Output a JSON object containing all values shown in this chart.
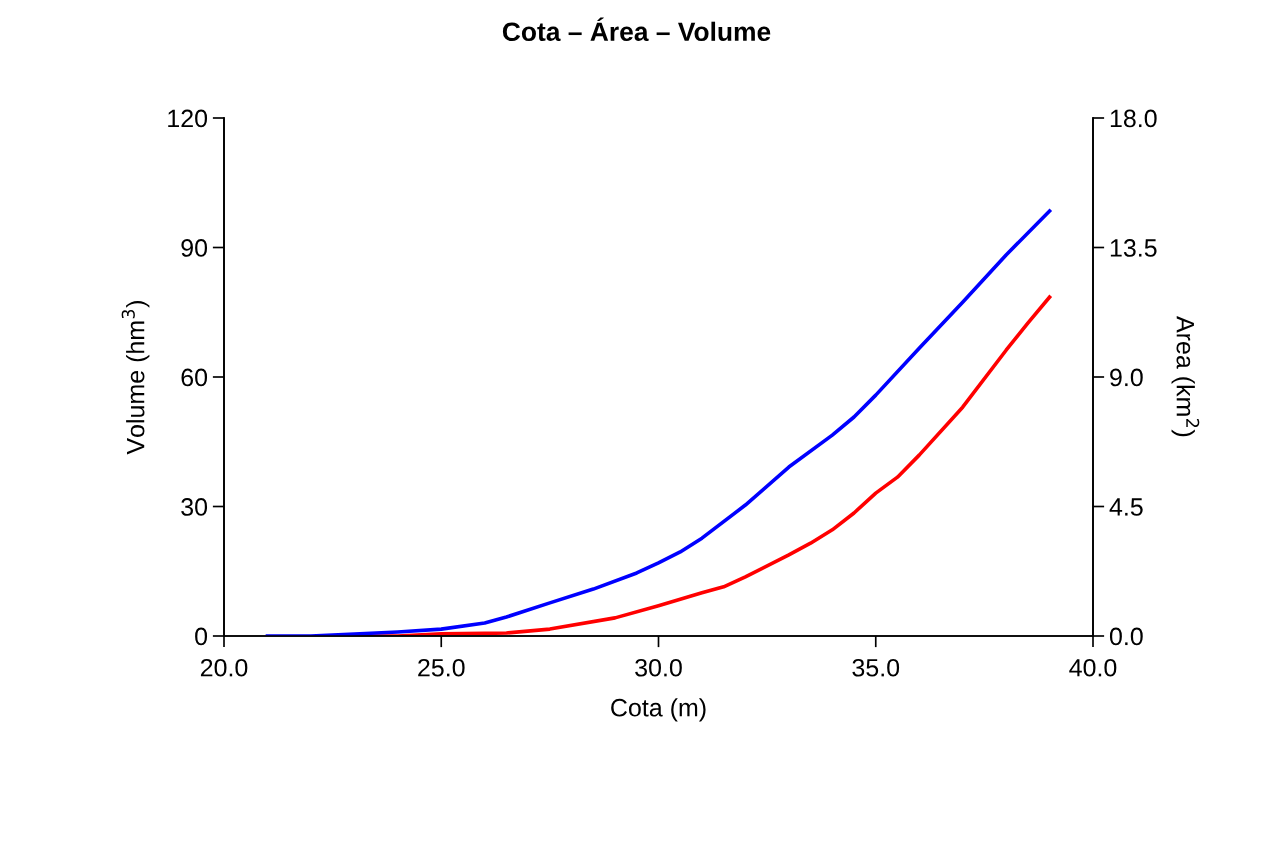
{
  "chart_data": {
    "type": "line",
    "title": "Cota – Área – Volume",
    "xlabel": "Cota (m)",
    "ylabel": "Volume (hm$^{3}$)",
    "y2label": "Area (km$^{2}$)",
    "xlim": [
      20,
      40
    ],
    "xticks": [
      {
        "value": 20,
        "label": "20.0"
      },
      {
        "value": 25,
        "label": "25.0"
      },
      {
        "value": 30,
        "label": "30.0"
      },
      {
        "value": 35,
        "label": "35.0"
      },
      {
        "value": 40,
        "label": "40.0"
      }
    ],
    "ylim": [
      0,
      120
    ],
    "yticks": [
      0,
      30,
      60,
      90,
      120
    ],
    "y2lim": [
      0,
      18
    ],
    "y2ticks": [
      {
        "value": 0,
        "label": "0.0"
      },
      {
        "value": 4.5,
        "label": "4.5"
      },
      {
        "value": 9,
        "label": "9.0"
      },
      {
        "value": 13.5,
        "label": "13.5"
      },
      {
        "value": 18,
        "label": "18.0"
      }
    ],
    "grid": false,
    "line_style": "solid",
    "marker": "none",
    "series": [
      {
        "color": "#ff0000",
        "x": [
          23,
          24,
          25,
          26,
          26.5,
          27.5,
          29,
          30,
          31,
          31.5,
          32,
          33,
          33.5,
          34,
          34.5,
          35,
          35.5,
          36,
          37,
          38,
          38.5,
          39
        ],
        "values": [
          0,
          0,
          0.5,
          0.6,
          0.7,
          1.6,
          4.2,
          7,
          10,
          11.4,
          13.7,
          18.8,
          21.5,
          24.6,
          28.5,
          33.1,
          36.8,
          41.9,
          53,
          66.2,
          72.5,
          78.5
        ]
      },
      {
        "color": "#0000ff",
        "axis": "y2",
        "x": [
          21,
          22,
          23,
          24,
          25,
          26,
          26.5,
          27.5,
          28.5,
          29.5,
          30,
          30.5,
          31,
          32,
          33,
          34,
          34.5,
          35,
          36,
          37,
          38,
          39
        ],
        "values": [
          0,
          0,
          0.07,
          0.14,
          0.24,
          0.45,
          0.66,
          1.15,
          1.63,
          2.19,
          2.54,
          2.92,
          3.4,
          4.55,
          5.87,
          6.98,
          7.61,
          8.37,
          10,
          11.6,
          13.24,
          14.77
        ]
      }
    ]
  }
}
